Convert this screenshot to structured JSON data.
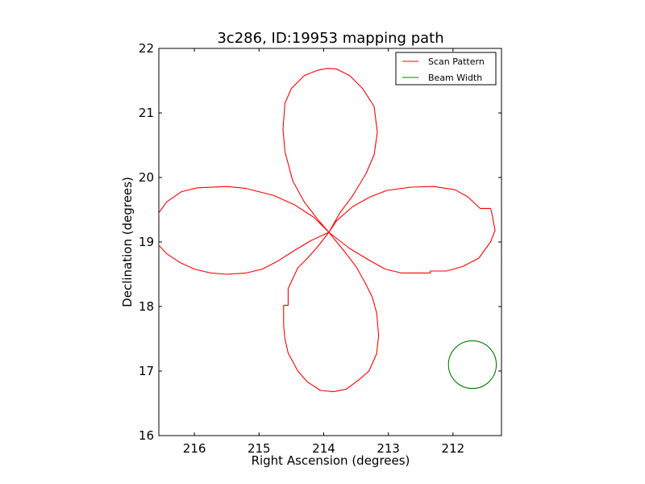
{
  "chart_data": {
    "type": "line",
    "title": "3c286, ID:19953 mapping path",
    "xlabel": "Right Ascension (degrees)",
    "ylabel": "Declination (degrees)",
    "xlim": [
      216.55,
      211.25
    ],
    "ylim": [
      16,
      22
    ],
    "x_inverted": true,
    "xticks": [
      216,
      215,
      214,
      213,
      212
    ],
    "yticks": [
      16,
      17,
      18,
      19,
      20,
      21,
      22
    ],
    "grid": false,
    "legend_position": "top-right",
    "series": [
      {
        "name": "Scan Pattern",
        "color": "#ff0000",
        "points": [
          [
            213.92,
            19.15
          ],
          [
            214.15,
            19.38
          ],
          [
            214.44,
            19.57
          ],
          [
            214.77,
            19.72
          ],
          [
            215.2,
            19.83
          ],
          [
            215.5,
            19.86
          ],
          [
            215.95,
            19.84
          ],
          [
            216.2,
            19.78
          ],
          [
            216.43,
            19.62
          ],
          [
            216.55,
            19.45
          ],
          [
            216.58,
            19.2
          ],
          [
            216.55,
            18.95
          ],
          [
            216.43,
            18.82
          ],
          [
            216.22,
            18.68
          ],
          [
            216.0,
            18.58
          ],
          [
            215.75,
            18.52
          ],
          [
            215.5,
            18.5
          ],
          [
            215.2,
            18.52
          ],
          [
            214.95,
            18.58
          ],
          [
            214.7,
            18.71
          ],
          [
            214.45,
            18.87
          ],
          [
            214.2,
            19.02
          ],
          [
            213.92,
            19.15
          ],
          [
            213.8,
            19.33
          ],
          [
            213.55,
            19.55
          ],
          [
            213.28,
            19.7
          ],
          [
            213.02,
            19.8
          ],
          [
            212.65,
            19.85
          ],
          [
            212.3,
            19.86
          ],
          [
            211.97,
            19.81
          ],
          [
            211.77,
            19.7
          ],
          [
            211.58,
            19.52
          ],
          [
            211.42,
            19.52
          ],
          [
            211.4,
            19.45
          ],
          [
            211.35,
            19.18
          ],
          [
            211.42,
            19.0
          ],
          [
            211.6,
            18.75
          ],
          [
            211.85,
            18.62
          ],
          [
            212.1,
            18.55
          ],
          [
            212.35,
            18.55
          ],
          [
            212.35,
            18.52
          ],
          [
            212.55,
            18.52
          ],
          [
            212.8,
            18.52
          ],
          [
            213.05,
            18.58
          ],
          [
            213.3,
            18.72
          ],
          [
            213.6,
            18.9
          ],
          [
            213.92,
            19.15
          ],
          [
            214.1,
            19.36
          ],
          [
            214.3,
            19.62
          ],
          [
            214.48,
            19.95
          ],
          [
            214.6,
            20.4
          ],
          [
            214.63,
            20.75
          ],
          [
            214.6,
            21.15
          ],
          [
            214.5,
            21.38
          ],
          [
            214.3,
            21.58
          ],
          [
            214.1,
            21.66
          ],
          [
            213.95,
            21.69
          ],
          [
            213.8,
            21.68
          ],
          [
            213.6,
            21.58
          ],
          [
            213.4,
            21.38
          ],
          [
            213.22,
            21.1
          ],
          [
            213.17,
            20.7
          ],
          [
            213.22,
            20.35
          ],
          [
            213.35,
            20.05
          ],
          [
            213.55,
            19.72
          ],
          [
            213.75,
            19.45
          ],
          [
            213.92,
            19.15
          ],
          [
            214.1,
            18.92
          ],
          [
            214.25,
            18.75
          ],
          [
            214.4,
            18.6
          ],
          [
            214.55,
            18.28
          ],
          [
            214.55,
            18.02
          ],
          [
            214.62,
            18.02
          ],
          [
            214.62,
            17.7
          ],
          [
            214.6,
            17.5
          ],
          [
            214.55,
            17.28
          ],
          [
            214.4,
            17.0
          ],
          [
            214.25,
            16.83
          ],
          [
            214.05,
            16.7
          ],
          [
            213.85,
            16.68
          ],
          [
            213.65,
            16.72
          ],
          [
            213.45,
            16.87
          ],
          [
            213.3,
            17.0
          ],
          [
            213.18,
            17.27
          ],
          [
            213.15,
            17.55
          ],
          [
            213.18,
            17.9
          ],
          [
            213.25,
            18.15
          ],
          [
            213.35,
            18.35
          ],
          [
            213.5,
            18.62
          ],
          [
            213.7,
            18.88
          ],
          [
            213.92,
            19.15
          ]
        ]
      },
      {
        "name": "Beam Width",
        "color": "#008000",
        "shape": "circle",
        "center": [
          211.7,
          17.1
        ],
        "radius_deg": 0.37
      }
    ]
  }
}
